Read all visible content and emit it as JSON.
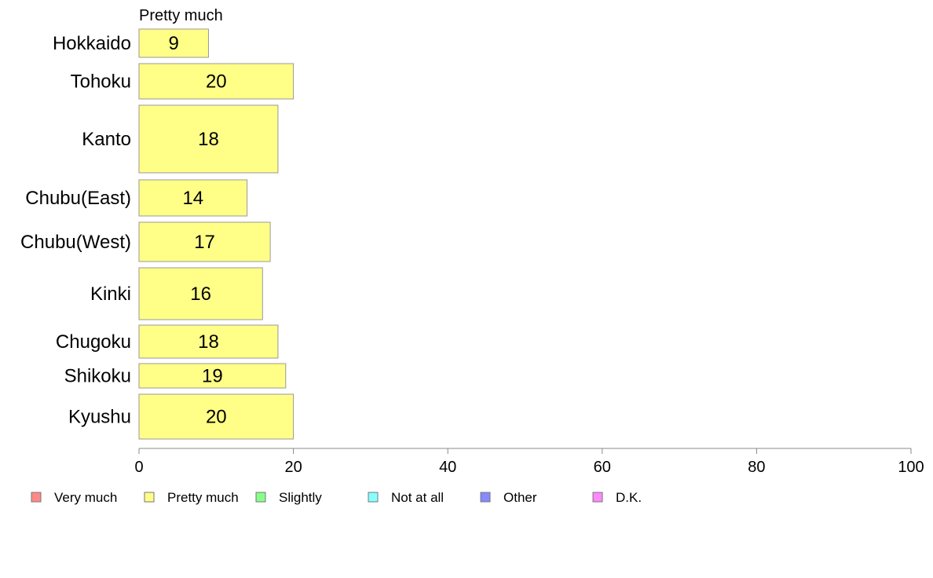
{
  "chart_data": {
    "type": "bar",
    "orientation": "horizontal",
    "title": "",
    "xlabel": "",
    "ylabel": "",
    "xlim": [
      0,
      100
    ],
    "x_ticks": [
      0,
      20,
      40,
      60,
      80,
      100
    ],
    "categories": [
      "Hokkaido",
      "Tohoku",
      "Kanto",
      "Chubu(East)",
      "Chubu(West)",
      "Kinki",
      "Chugoku",
      "Shikoku",
      "Kyushu"
    ],
    "series": [
      {
        "name": "Pretty much",
        "values": [
          9,
          20,
          18,
          14,
          17,
          16,
          18,
          19,
          20
        ],
        "color": "#ffff88"
      }
    ],
    "legend": [
      {
        "label": "Very much",
        "color": "#ff8888"
      },
      {
        "label": "Pretty much",
        "color": "#ffff88"
      },
      {
        "label": "Slightly",
        "color": "#88ff88"
      },
      {
        "label": "Not at all",
        "color": "#88ffff"
      },
      {
        "label": "Other",
        "color": "#8888ff"
      },
      {
        "label": "D.K.",
        "color": "#ff88ff"
      }
    ],
    "legend_position": "bottom",
    "grid": false
  }
}
